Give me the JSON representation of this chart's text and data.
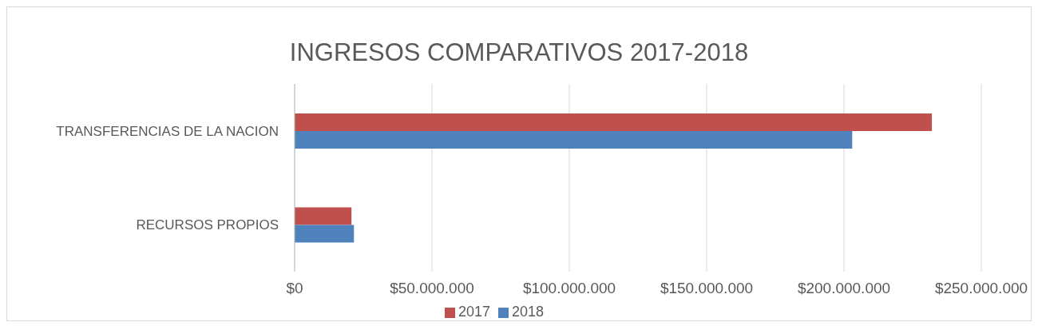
{
  "chart_data": {
    "type": "bar",
    "orientation": "horizontal",
    "title": "INGRESOS COMPARATIVOS 2017-2018",
    "categories": [
      "TRANSFERENCIAS DE LA NACION",
      "RECURSOS PROPIOS"
    ],
    "series": [
      {
        "name": "2017",
        "color": "#c0504d",
        "values": [
          232000000,
          20700000
        ]
      },
      {
        "name": "2018",
        "color": "#4f81bd",
        "values": [
          203000000,
          21600000
        ]
      }
    ],
    "xlim": [
      0,
      250000000
    ],
    "xticks": [
      {
        "value": 0,
        "label": "$0"
      },
      {
        "value": 50000000,
        "label": "$50.000.000"
      },
      {
        "value": 100000000,
        "label": "$100.000.000"
      },
      {
        "value": 150000000,
        "label": "$150.000.000"
      },
      {
        "value": 200000000,
        "label": "$200.000.000"
      },
      {
        "value": 250000000,
        "label": "$250.000.000"
      }
    ],
    "grid": "x",
    "legend": "bottom"
  }
}
